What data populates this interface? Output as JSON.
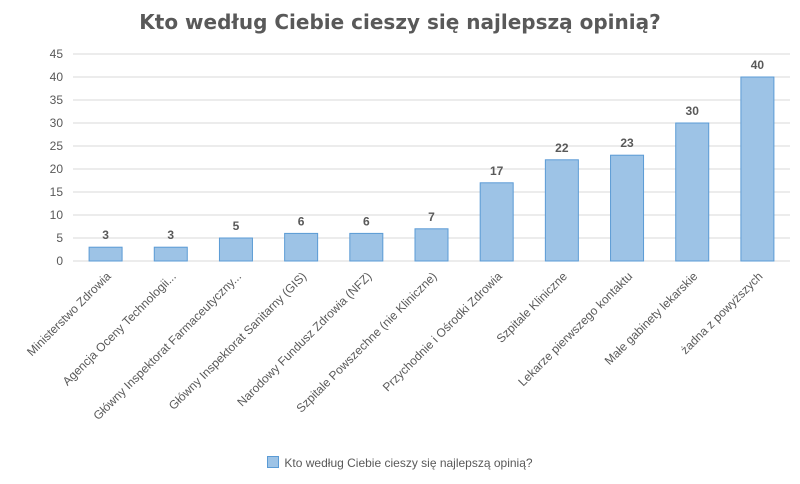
{
  "chart_data": {
    "type": "bar",
    "title": "Kto według Ciebie cieszy się najlepszą opinią?",
    "categories": [
      "Ministerstwo Zdrowia",
      "Agencja Oceny Technologii...",
      "Główny Inspektorat Farmaceutyczny...",
      "Główny Inspektorat Sanitarny (GIS)",
      "Narodowy Fundusz Zdrowia (NFZ)",
      "Szpitale Powszechne (nie Kliniczne)",
      "Przychodnie i Ośrodki Zdrowia",
      "Szpitale Kliniczne",
      "Lekarze pierwszego kontaktu",
      "Małe gabinety lekarskie",
      "żadna z powyższych"
    ],
    "series": [
      {
        "name": "Kto według Ciebie cieszy się najlepszą opinią?",
        "values": [
          3,
          3,
          5,
          6,
          6,
          7,
          17,
          22,
          23,
          30,
          40
        ]
      }
    ],
    "yticks": [
      0,
      5,
      10,
      15,
      20,
      25,
      30,
      35,
      40,
      45
    ],
    "ylim": [
      0,
      45
    ],
    "xlabel": "",
    "ylabel": "",
    "legend_position": "bottom",
    "grid": true,
    "colors": {
      "bar_fill": "#9dc3e6",
      "bar_stroke": "#5b9bd5",
      "grid": "#d9d9d9",
      "text": "#595959"
    }
  }
}
